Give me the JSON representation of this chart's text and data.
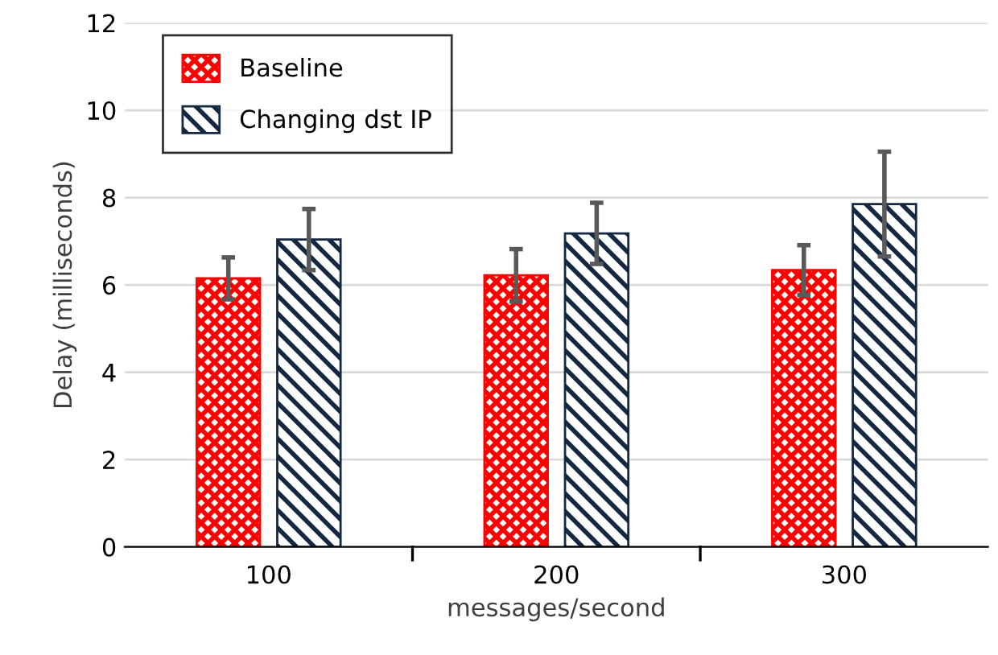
{
  "chart_data": {
    "type": "bar",
    "xlabel": "messages/second",
    "ylabel": "Delay (milliseconds)",
    "categories": [
      "100",
      "200",
      "300"
    ],
    "series": [
      {
        "name": "Baseline",
        "color": "#ff0000",
        "values": [
          6.15,
          6.22,
          6.34
        ],
        "errors": [
          0.48,
          0.6,
          0.57
        ]
      },
      {
        "name": "Changing dst IP",
        "color": "#142841",
        "values": [
          7.04,
          7.18,
          7.85
        ],
        "errors": [
          0.7,
          0.7,
          1.2
        ]
      }
    ],
    "ylim": [
      0,
      12
    ],
    "yticks": [
      0,
      2,
      4,
      6,
      8,
      10,
      12
    ],
    "grid": "y",
    "legend": "top left"
  }
}
